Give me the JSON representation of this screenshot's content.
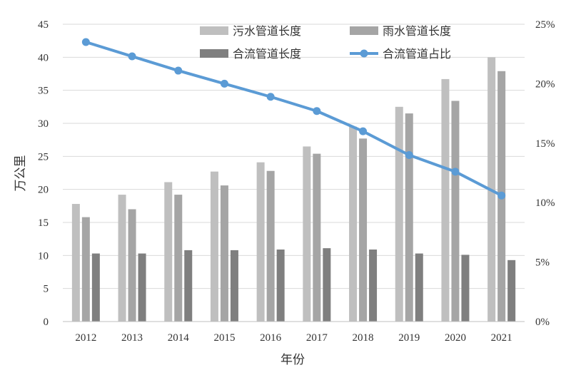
{
  "chart_data": {
    "type": "bar",
    "categories": [
      "2012",
      "2013",
      "2014",
      "2015",
      "2016",
      "2017",
      "2018",
      "2019",
      "2020",
      "2021"
    ],
    "series": [
      {
        "name": "污水管道长度",
        "kind": "bar",
        "axis": "left",
        "color": "#bfbfbf",
        "values": [
          17.8,
          19.2,
          21.1,
          22.7,
          24.1,
          26.5,
          29.5,
          32.5,
          36.7,
          40.0
        ]
      },
      {
        "name": "雨水管道长度",
        "kind": "bar",
        "axis": "left",
        "color": "#a5a5a5",
        "values": [
          15.8,
          17.0,
          19.2,
          20.6,
          22.8,
          25.4,
          27.7,
          31.5,
          33.4,
          37.9
        ]
      },
      {
        "name": "合流管道长度",
        "kind": "bar",
        "axis": "left",
        "color": "#7f7f7f",
        "values": [
          10.3,
          10.3,
          10.8,
          10.8,
          10.9,
          11.1,
          10.9,
          10.3,
          10.1,
          9.3
        ]
      },
      {
        "name": "合流管道占比",
        "kind": "line",
        "axis": "right",
        "color": "#5b9bd5",
        "values": [
          23.5,
          22.3,
          21.1,
          20.0,
          18.9,
          17.7,
          16.0,
          14.0,
          12.6,
          10.6
        ]
      }
    ],
    "xlabel": "年份",
    "ylabel": "万公里",
    "ylim": [
      0,
      45
    ],
    "y_ticks": [
      "0",
      "5",
      "10",
      "15",
      "20",
      "25",
      "30",
      "35",
      "40",
      "45"
    ],
    "y2lim": [
      0,
      25
    ],
    "y2_ticks": [
      "0%",
      "5%",
      "10%",
      "15%",
      "20%",
      "25%"
    ],
    "grid": true,
    "legend": "top"
  }
}
